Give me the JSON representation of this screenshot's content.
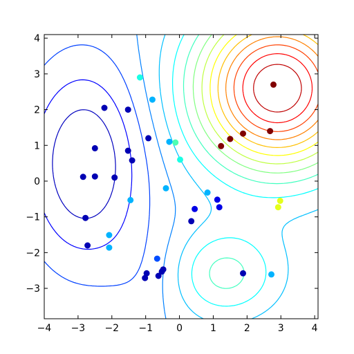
{
  "chart_data": {
    "type": "scatter",
    "title": "",
    "xlabel": "",
    "ylabel": "",
    "xlim": [
      -4.0,
      4.1
    ],
    "ylim": [
      -3.85,
      4.1
    ],
    "grid": false,
    "legend": "none",
    "colormap": "jet",
    "color_range": [
      0,
      1
    ],
    "x_ticks": [
      -4,
      -3,
      -2,
      -1,
      0,
      1,
      2,
      3,
      4
    ],
    "y_ticks": [
      -3,
      -2,
      -1,
      0,
      1,
      2,
      3,
      4
    ],
    "x_tick_labels": [
      "−4",
      "−3",
      "−2",
      "−1",
      "0",
      "1",
      "2",
      "3",
      "4"
    ],
    "y_tick_labels": [
      "−3",
      "−2",
      "−1",
      "0",
      "1",
      "2",
      "3",
      "4"
    ],
    "contour_levels": 15,
    "points": [
      {
        "x": -2.85,
        "y": 0.12,
        "c": 0.05
      },
      {
        "x": -2.78,
        "y": -1.03,
        "c": 0.05
      },
      {
        "x": -2.72,
        "y": -1.8,
        "c": 0.05
      },
      {
        "x": -2.5,
        "y": 0.92,
        "c": 0.05
      },
      {
        "x": -2.5,
        "y": 0.13,
        "c": 0.05
      },
      {
        "x": -2.22,
        "y": 2.05,
        "c": 0.05
      },
      {
        "x": -2.08,
        "y": -1.51,
        "c": 0.3
      },
      {
        "x": -2.08,
        "y": -1.86,
        "c": 0.3
      },
      {
        "x": -1.92,
        "y": 0.1,
        "c": 0.05
      },
      {
        "x": -1.52,
        "y": 2.0,
        "c": 0.05
      },
      {
        "x": -1.52,
        "y": 0.85,
        "c": 0.05
      },
      {
        "x": -1.45,
        "y": -0.53,
        "c": 0.3
      },
      {
        "x": -1.4,
        "y": 0.58,
        "c": 0.05
      },
      {
        "x": -1.17,
        "y": 2.9,
        "c": 0.4
      },
      {
        "x": -1.02,
        "y": -2.71,
        "c": 0.05
      },
      {
        "x": -0.97,
        "y": -2.58,
        "c": 0.05
      },
      {
        "x": -0.92,
        "y": 1.2,
        "c": 0.05
      },
      {
        "x": -0.8,
        "y": 2.28,
        "c": 0.3
      },
      {
        "x": -0.66,
        "y": -2.17,
        "c": 0.2
      },
      {
        "x": -0.62,
        "y": -2.65,
        "c": 0.05
      },
      {
        "x": -0.52,
        "y": -2.53,
        "c": 0.05
      },
      {
        "x": -0.48,
        "y": -2.47,
        "c": 0.05
      },
      {
        "x": -0.4,
        "y": -0.2,
        "c": 0.3
      },
      {
        "x": -0.3,
        "y": 1.1,
        "c": 0.3
      },
      {
        "x": -0.12,
        "y": 1.08,
        "c": 0.45
      },
      {
        "x": 0.02,
        "y": 0.6,
        "c": 0.4
      },
      {
        "x": 0.35,
        "y": -1.12,
        "c": 0.05
      },
      {
        "x": 0.45,
        "y": -0.78,
        "c": 0.1
      },
      {
        "x": 0.83,
        "y": -0.32,
        "c": 0.3
      },
      {
        "x": 1.12,
        "y": -0.52,
        "c": 0.1
      },
      {
        "x": 1.18,
        "y": -0.73,
        "c": 0.1
      },
      {
        "x": 1.23,
        "y": 0.98,
        "c": 0.9
      },
      {
        "x": 1.5,
        "y": 1.18,
        "c": 1.0
      },
      {
        "x": 1.88,
        "y": -2.58,
        "c": 0.05
      },
      {
        "x": 1.88,
        "y": 1.33,
        "c": 1.0
      },
      {
        "x": 2.68,
        "y": 1.4,
        "c": 1.0
      },
      {
        "x": 2.72,
        "y": -2.61,
        "c": 0.3
      },
      {
        "x": 2.78,
        "y": 2.7,
        "c": 1.0
      },
      {
        "x": 2.92,
        "y": -0.73,
        "c": 0.6
      },
      {
        "x": 2.98,
        "y": -0.55,
        "c": 0.6
      }
    ]
  }
}
